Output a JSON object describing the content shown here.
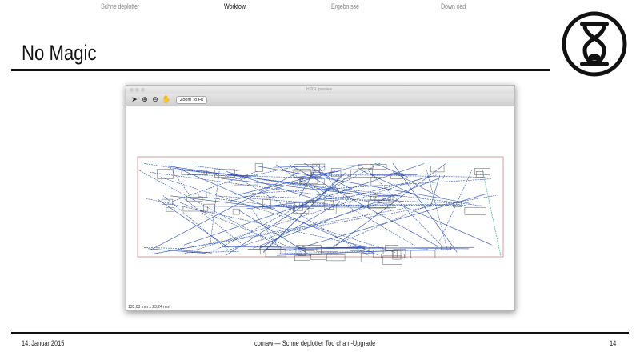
{
  "nav": {
    "items": [
      {
        "label": "Schne deplotter",
        "active": false
      },
      {
        "label": "Workfow",
        "active": true
      },
      {
        "label": "Ergebn sse",
        "active": false
      },
      {
        "label": "Down oad",
        "active": false
      }
    ]
  },
  "slide": {
    "title": "No Magic"
  },
  "window": {
    "title": "HPGL preview",
    "zoom_to_fit_label": "Zoom To Fit",
    "status": "135,03 mm x 23,24 mm",
    "tools": [
      "pointer-icon",
      "zoom-in-icon",
      "zoom-out-icon",
      "hand-icon"
    ],
    "colors": {
      "paths": "#2a4fb5",
      "outline": "#555555",
      "bounds": "#d08080",
      "return": "#30b080"
    }
  },
  "footer": {
    "date": "14. Januar 2015",
    "center": "comaw  — Schne deplotter Too cha n-Upgrade",
    "page": "14"
  }
}
